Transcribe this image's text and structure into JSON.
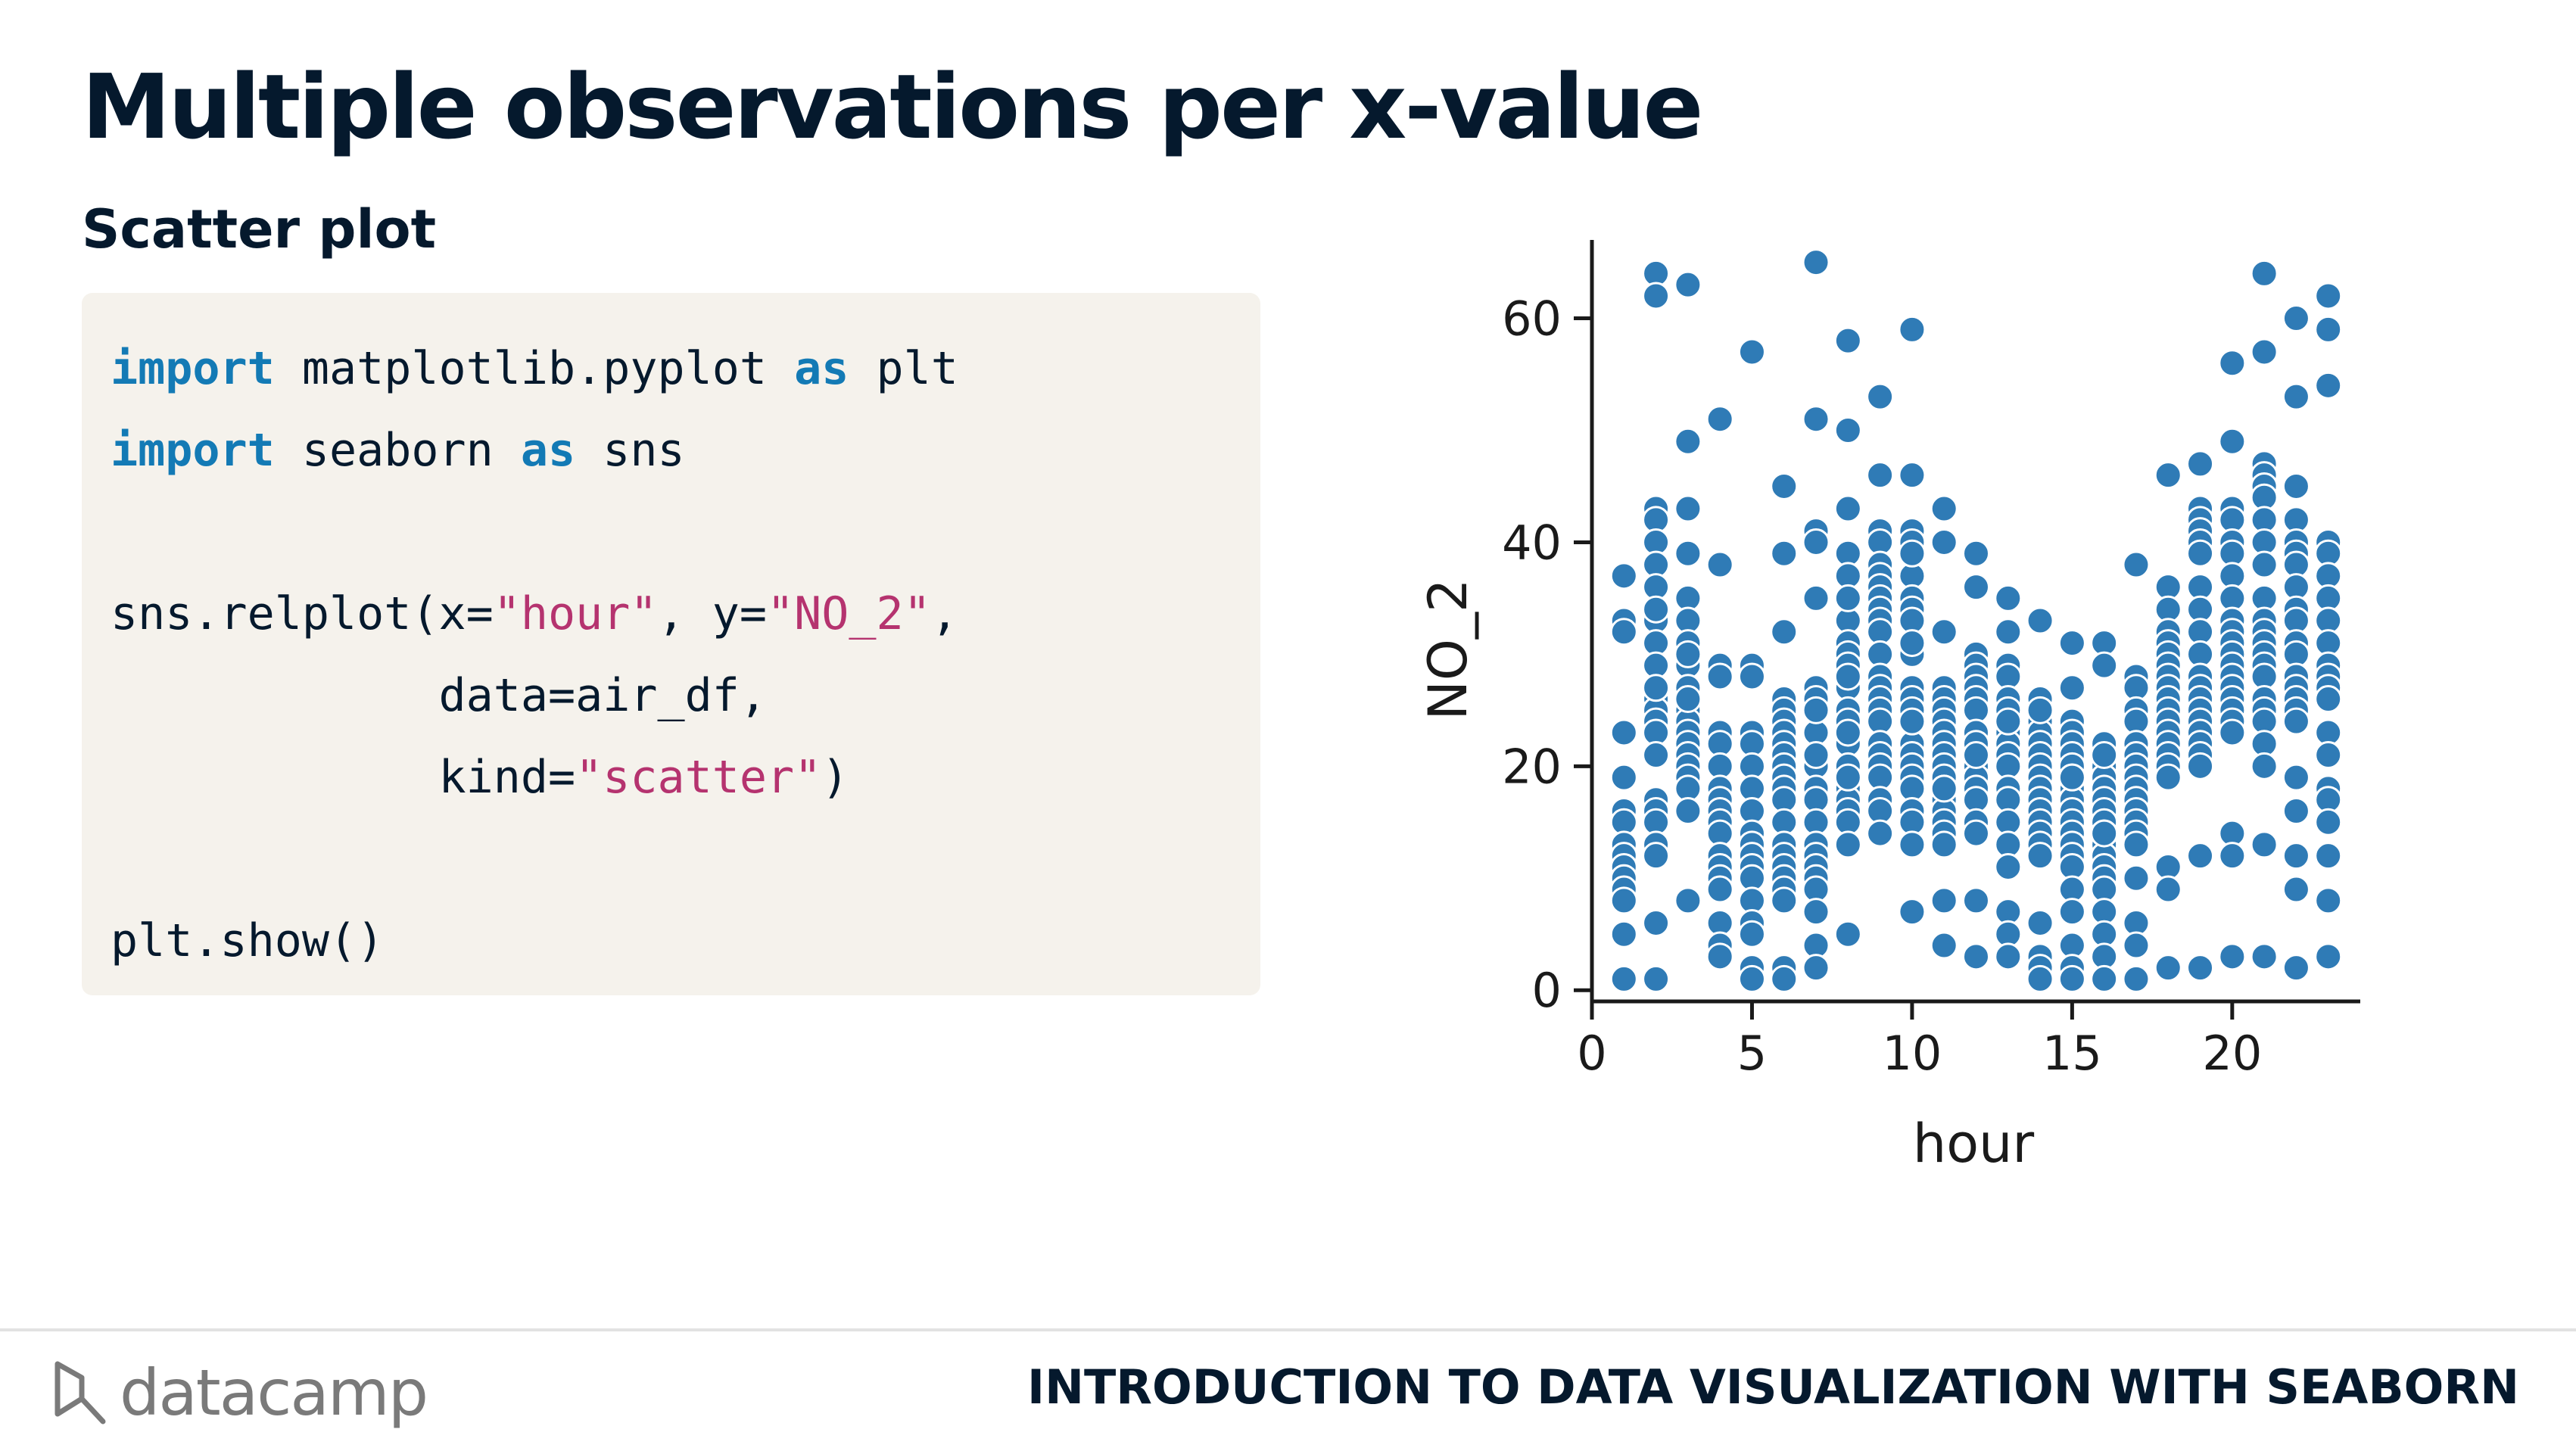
{
  "slide": {
    "title": "Multiple observations per x-value",
    "subtitle": "Scatter plot"
  },
  "code": {
    "lines": [
      [
        {
          "t": "import",
          "c": "kw"
        },
        {
          "t": " matplotlib.pyplot "
        },
        {
          "t": "as",
          "c": "kw"
        },
        {
          "t": " plt"
        }
      ],
      [
        {
          "t": "import",
          "c": "kw"
        },
        {
          "t": " seaborn "
        },
        {
          "t": "as",
          "c": "kw"
        },
        {
          "t": " sns"
        }
      ],
      [],
      [
        {
          "t": "sns.relplot(x="
        },
        {
          "t": "\"hour\"",
          "c": "str"
        },
        {
          "t": ", y="
        },
        {
          "t": "\"NO_2\"",
          "c": "str"
        },
        {
          "t": ","
        }
      ],
      [
        {
          "t": "            data=air_df,"
        }
      ],
      [
        {
          "t": "            kind="
        },
        {
          "t": "\"scatter\"",
          "c": "str"
        },
        {
          "t": ")"
        }
      ],
      [],
      [
        {
          "t": "plt.show()"
        }
      ]
    ]
  },
  "footer": {
    "logo_text": "datacamp",
    "course_title": "INTRODUCTION TO DATA VISUALIZATION WITH SEABORN"
  },
  "colors": {
    "title": "#05192d",
    "keyword": "#137ab5",
    "string": "#b5336f",
    "point": "#2f7bb6",
    "code_bg": "#f5f2ec"
  },
  "chart_data": {
    "type": "scatter",
    "title": "",
    "xlabel": "hour",
    "ylabel": "NO_2",
    "xlim": [
      0,
      24
    ],
    "ylim": [
      -1,
      67
    ],
    "xticks": [
      0,
      5,
      10,
      15,
      20
    ],
    "yticks": [
      0,
      20,
      40,
      60
    ],
    "grid": false,
    "series": [
      {
        "x": [
          1,
          1,
          1,
          1,
          1,
          1,
          1,
          1,
          1,
          1,
          1,
          1,
          1,
          1,
          1,
          1,
          2,
          2,
          2,
          2,
          2,
          2,
          2,
          2,
          2,
          2,
          2,
          2,
          2,
          2,
          2,
          2,
          2,
          2,
          2,
          2,
          2,
          2,
          2,
          2,
          3,
          3,
          3,
          3,
          3,
          3,
          3,
          3,
          3,
          3,
          3,
          3,
          3,
          3,
          3,
          3,
          3,
          3,
          3,
          3,
          3,
          4,
          4,
          4,
          4,
          4,
          4,
          4,
          4,
          4,
          4,
          4,
          4,
          4,
          4,
          4,
          4,
          4,
          4,
          4,
          5,
          5,
          5,
          5,
          5,
          5,
          5,
          5,
          5,
          5,
          5,
          5,
          5,
          5,
          5,
          5,
          5,
          5,
          6,
          6,
          6,
          6,
          6,
          6,
          6,
          6,
          6,
          6,
          6,
          6,
          6,
          6,
          6,
          6,
          6,
          6,
          6,
          6,
          6,
          6,
          7,
          7,
          7,
          7,
          7,
          7,
          7,
          7,
          7,
          7,
          7,
          7,
          7,
          7,
          7,
          7,
          7,
          7,
          7,
          7,
          7,
          7,
          8,
          8,
          8,
          8,
          8,
          8,
          8,
          8,
          8,
          8,
          8,
          8,
          8,
          8,
          8,
          8,
          8,
          8,
          8,
          8,
          8,
          8,
          8,
          8,
          9,
          9,
          9,
          9,
          9,
          9,
          9,
          9,
          9,
          9,
          9,
          9,
          9,
          9,
          9,
          9,
          9,
          9,
          9,
          9,
          9,
          9,
          9,
          9,
          10,
          10,
          10,
          10,
          10,
          10,
          10,
          10,
          10,
          10,
          10,
          10,
          10,
          10,
          10,
          10,
          10,
          10,
          10,
          10,
          10,
          10,
          10,
          10,
          11,
          11,
          11,
          11,
          11,
          11,
          11,
          11,
          11,
          11,
          11,
          11,
          11,
          11,
          11,
          11,
          11,
          11,
          11,
          11,
          11,
          12,
          12,
          12,
          12,
          12,
          12,
          12,
          12,
          12,
          12,
          12,
          12,
          12,
          12,
          12,
          12,
          12,
          12,
          12,
          13,
          13,
          13,
          13,
          13,
          13,
          13,
          13,
          13,
          13,
          13,
          13,
          13,
          13,
          13,
          13,
          13,
          13,
          13,
          14,
          14,
          14,
          14,
          14,
          14,
          14,
          14,
          14,
          14,
          14,
          14,
          14,
          14,
          14,
          14,
          14,
          14,
          14,
          14,
          15,
          15,
          15,
          15,
          15,
          15,
          15,
          15,
          15,
          15,
          15,
          15,
          15,
          15,
          15,
          15,
          15,
          15,
          15,
          15,
          15,
          15,
          16,
          16,
          16,
          16,
          16,
          16,
          16,
          16,
          16,
          16,
          16,
          16,
          16,
          16,
          16,
          16,
          16,
          16,
          16,
          16,
          16,
          17,
          17,
          17,
          17,
          17,
          17,
          17,
          17,
          17,
          17,
          17,
          17,
          17,
          17,
          17,
          17,
          17,
          17,
          17,
          18,
          18,
          18,
          18,
          18,
          18,
          18,
          18,
          18,
          18,
          18,
          18,
          18,
          18,
          18,
          18,
          18,
          18,
          18,
          18,
          19,
          19,
          19,
          19,
          19,
          19,
          19,
          19,
          19,
          19,
          19,
          19,
          19,
          19,
          19,
          19,
          19,
          19,
          19,
          19,
          19,
          20,
          20,
          20,
          20,
          20,
          20,
          20,
          20,
          20,
          20,
          20,
          20,
          20,
          20,
          20,
          20,
          20,
          20,
          20,
          20,
          20,
          20,
          21,
          21,
          21,
          21,
          21,
          21,
          21,
          21,
          21,
          21,
          21,
          21,
          21,
          21,
          21,
          21,
          21,
          21,
          21,
          21,
          21,
          21,
          21,
          22,
          22,
          22,
          22,
          22,
          22,
          22,
          22,
          22,
          22,
          22,
          22,
          22,
          22,
          22,
          22,
          22,
          22,
          22,
          22,
          22,
          22,
          23,
          23,
          23,
          23,
          23,
          23,
          23,
          23,
          23,
          23,
          23,
          23,
          23,
          23,
          23,
          23,
          23,
          23,
          23,
          23,
          23
        ],
        "y": [
          37,
          33,
          32,
          23,
          19,
          16,
          15,
          13,
          12,
          11,
          10,
          9,
          8,
          5,
          1,
          37,
          64,
          62,
          43,
          42,
          40,
          38,
          36,
          33,
          31,
          29,
          26,
          25,
          24,
          23,
          17,
          16,
          15,
          13,
          12,
          6,
          1,
          34,
          27,
          21,
          63,
          49,
          43,
          39,
          35,
          33,
          31,
          29,
          27,
          25,
          24,
          23,
          22,
          21,
          20,
          19,
          18,
          16,
          8,
          30,
          26,
          51,
          38,
          29,
          28,
          23,
          22,
          20,
          18,
          17,
          16,
          15,
          14,
          12,
          11,
          10,
          9,
          6,
          4,
          3,
          57,
          29,
          28,
          23,
          22,
          20,
          18,
          16,
          14,
          13,
          12,
          11,
          10,
          8,
          6,
          5,
          2,
          1,
          45,
          39,
          32,
          26,
          25,
          24,
          23,
          22,
          21,
          20,
          19,
          18,
          17,
          15,
          13,
          12,
          11,
          10,
          9,
          8,
          2,
          1,
          65,
          51,
          41,
          40,
          35,
          27,
          26,
          23,
          20,
          18,
          17,
          15,
          13,
          12,
          11,
          10,
          9,
          7,
          4,
          2,
          25,
          21,
          58,
          50,
          43,
          39,
          37,
          33,
          31,
          30,
          29,
          27,
          25,
          24,
          22,
          20,
          18,
          17,
          16,
          15,
          13,
          5,
          35,
          28,
          23,
          19,
          53,
          46,
          41,
          40,
          38,
          37,
          36,
          35,
          34,
          33,
          32,
          30,
          28,
          27,
          26,
          25,
          24,
          22,
          21,
          20,
          19,
          17,
          16,
          14,
          59,
          46,
          41,
          40,
          37,
          35,
          34,
          33,
          30,
          27,
          26,
          25,
          22,
          21,
          20,
          19,
          18,
          16,
          15,
          13,
          7,
          39,
          31,
          24,
          43,
          40,
          32,
          27,
          26,
          25,
          24,
          23,
          22,
          21,
          20,
          19,
          18,
          17,
          16,
          15,
          14,
          13,
          8,
          4,
          18,
          39,
          36,
          30,
          29,
          28,
          27,
          26,
          25,
          23,
          22,
          20,
          19,
          18,
          17,
          15,
          14,
          8,
          3,
          21,
          35,
          32,
          29,
          28,
          26,
          25,
          23,
          22,
          21,
          20,
          18,
          17,
          15,
          13,
          11,
          7,
          5,
          3,
          24,
          33,
          26,
          24,
          23,
          22,
          21,
          20,
          19,
          18,
          17,
          16,
          15,
          14,
          13,
          12,
          6,
          3,
          2,
          1,
          25,
          31,
          27,
          24,
          23,
          22,
          21,
          20,
          19,
          18,
          17,
          16,
          15,
          14,
          13,
          12,
          11,
          9,
          7,
          4,
          2,
          1,
          19,
          31,
          29,
          20,
          19,
          18,
          17,
          16,
          15,
          14,
          13,
          12,
          11,
          10,
          9,
          7,
          5,
          3,
          1,
          22,
          21,
          14,
          38,
          28,
          27,
          25,
          24,
          22,
          21,
          20,
          19,
          18,
          17,
          16,
          15,
          14,
          13,
          10,
          6,
          4,
          1,
          46,
          36,
          34,
          32,
          31,
          30,
          29,
          28,
          27,
          26,
          25,
          24,
          23,
          22,
          21,
          20,
          19,
          11,
          9,
          2,
          47,
          43,
          42,
          41,
          40,
          39,
          36,
          34,
          32,
          30,
          28,
          27,
          26,
          25,
          24,
          23,
          22,
          21,
          20,
          12,
          2,
          56,
          49,
          43,
          42,
          40,
          39,
          37,
          35,
          33,
          32,
          31,
          30,
          29,
          28,
          27,
          26,
          25,
          24,
          23,
          14,
          12,
          3,
          64,
          57,
          47,
          46,
          45,
          44,
          42,
          40,
          38,
          35,
          33,
          32,
          31,
          30,
          29,
          28,
          26,
          25,
          24,
          22,
          20,
          13,
          3,
          60,
          53,
          45,
          42,
          40,
          39,
          38,
          36,
          34,
          33,
          31,
          30,
          28,
          27,
          26,
          25,
          24,
          19,
          16,
          12,
          9,
          2,
          62,
          59,
          54,
          40,
          39,
          37,
          35,
          33,
          31,
          29,
          28,
          27,
          26,
          23,
          21,
          18,
          17,
          15,
          12,
          8,
          3
        ]
      }
    ]
  }
}
